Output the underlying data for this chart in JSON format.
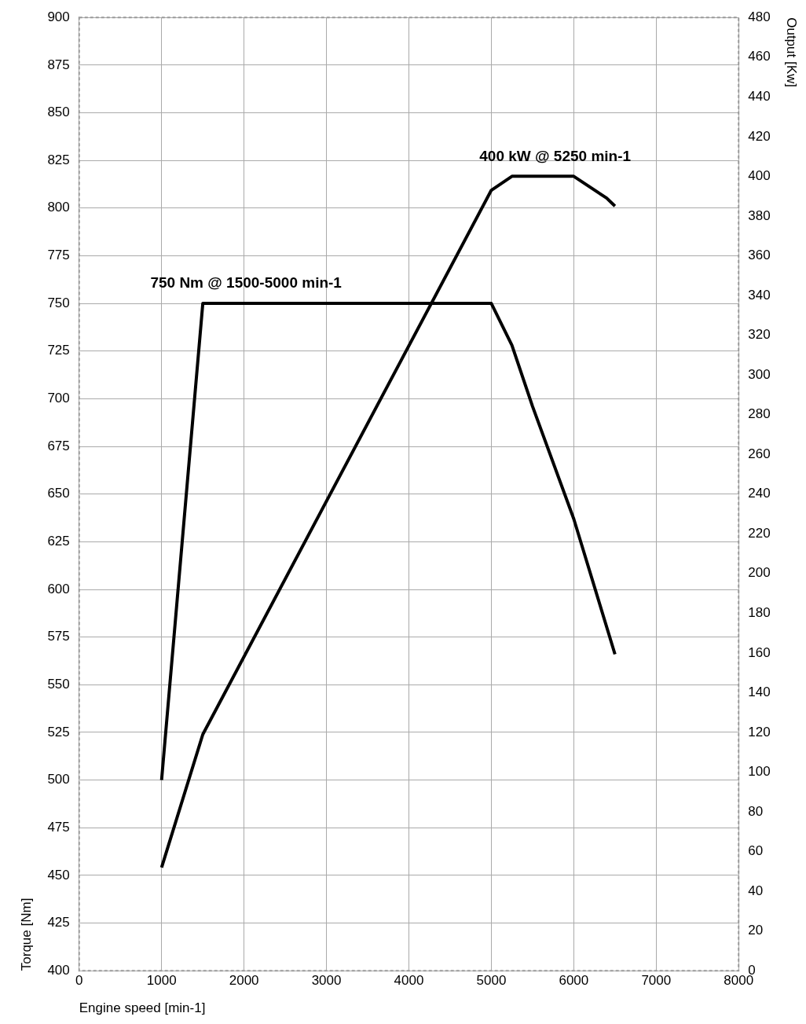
{
  "chart_data": {
    "type": "line",
    "xlabel": "Engine speed [min-1]",
    "ylabel": "Torque [Nm]",
    "y2label": "Output [Kw]",
    "xlim": [
      0,
      8000
    ],
    "xticks": [
      0,
      1000,
      2000,
      3000,
      4000,
      5000,
      6000,
      7000,
      8000
    ],
    "ylim": [
      400,
      900
    ],
    "yticks": [
      400,
      425,
      450,
      475,
      500,
      525,
      550,
      575,
      600,
      625,
      650,
      675,
      700,
      725,
      750,
      775,
      800,
      825,
      850,
      875,
      900
    ],
    "y2lim": [
      0,
      480
    ],
    "y2ticks": [
      0,
      20,
      40,
      60,
      80,
      100,
      120,
      140,
      160,
      180,
      200,
      220,
      240,
      260,
      280,
      300,
      320,
      340,
      360,
      380,
      400,
      420,
      440,
      460,
      480
    ],
    "series": [
      {
        "color": "#000000",
        "x": [
          1000,
          1500,
          5000,
          5250,
          5500,
          6000,
          6500
        ],
        "values": [
          500,
          750,
          750,
          728,
          696,
          637,
          566
        ]
      },
      {
        "color": "#000000",
        "axis": "y2",
        "x": [
          1000,
          1500,
          5000,
          5250,
          6000,
          6400,
          6500
        ],
        "values": [
          52,
          119,
          393,
          400,
          400,
          389,
          385
        ]
      }
    ],
    "annotations": [
      "750 Nm @ 1500-5000 min-1",
      "400 kW @ 5250 min-1"
    ],
    "grid": true,
    "legend": false,
    "marker": "none",
    "line_style": "solid"
  }
}
